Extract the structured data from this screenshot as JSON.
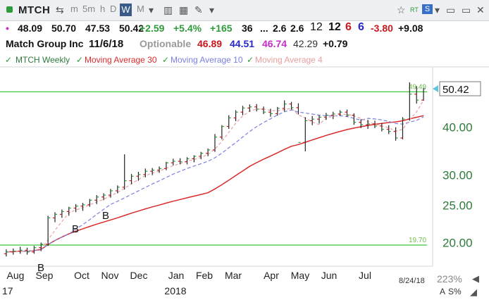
{
  "toolbar": {
    "symbol": "MTCH",
    "intervals": [
      "m",
      "5m",
      "h",
      "D",
      "W",
      "M"
    ],
    "active_interval": "W",
    "right_labels": [
      "RT",
      "S"
    ]
  },
  "quote": {
    "last": "48.09",
    "high": "50.70",
    "low": "47.53",
    "close": "50.42",
    "change": "+2.59",
    "change_pct": "+5.4%",
    "v1": "+165",
    "v2": "36",
    "v3": "2.6",
    "v4": "2.6",
    "v5": "12",
    "v6": "12",
    "v7": "6",
    "v8": "6",
    "v9": "-3.80",
    "v10": "+9.08"
  },
  "info": {
    "company": "Match Group Inc",
    "date": "11/6/18",
    "optionable": "Optionable",
    "n1": "46.89",
    "n2": "44.51",
    "n3": "46.74",
    "n4": "42.29",
    "n5": "+0.79"
  },
  "legend": {
    "symbol_label": "MTCH Weekly",
    "ma30": "Moving Average 30",
    "ma10": "Moving Average 10",
    "ma4": "Moving Average 4"
  },
  "colors": {
    "up": "#2e9b3b",
    "down": "#c8181e",
    "ma30": "#d92b2b",
    "ma10": "#7b7fe0",
    "ma4": "#e8a0a0",
    "hline": "#3ec83e",
    "candle": "#222222",
    "purple": "#c42fc8",
    "blue": "#2828c8"
  },
  "chart_data": {
    "type": "bar",
    "scale": "log",
    "ylim": [
      17.5,
      57
    ],
    "y_ticks": [
      {
        "value": 20,
        "label": "20.00"
      },
      {
        "value": 25,
        "label": "25.00"
      },
      {
        "value": 30,
        "label": "30.00"
      },
      {
        "value": 40,
        "label": "40.00"
      },
      {
        "value": 50.42,
        "label": "50.42"
      }
    ],
    "x_months": [
      "Aug",
      "Sep",
      "Oct",
      "Nov",
      "Dec",
      "Jan",
      "Feb",
      "Mar",
      "Apr",
      "May",
      "Jun",
      "Jul"
    ],
    "x_years": [
      "17",
      "2018"
    ],
    "last_date": "8/24/18",
    "zoom": "223%",
    "scale_labels": [
      "A",
      "S%"
    ],
    "hlines": [
      {
        "value": 19.7,
        "label": "19.70"
      },
      {
        "value": 49.49,
        "label": "49.49"
      }
    ],
    "annotations": [
      "B",
      "B",
      "B"
    ],
    "weeks": [
      [
        18.7,
        19.2,
        18.4,
        18.9
      ],
      [
        18.9,
        19.3,
        18.6,
        19.0
      ],
      [
        19.0,
        19.5,
        18.7,
        19.1
      ],
      [
        19.1,
        19.4,
        18.6,
        18.9
      ],
      [
        18.9,
        19.6,
        18.7,
        19.4
      ],
      [
        19.4,
        20.0,
        19.0,
        19.8
      ],
      [
        19.8,
        23.5,
        19.6,
        23.2
      ],
      [
        23.2,
        24.0,
        22.6,
        23.7
      ],
      [
        23.7,
        24.4,
        23.2,
        24.1
      ],
      [
        24.1,
        24.8,
        23.5,
        24.6
      ],
      [
        24.6,
        25.2,
        24.0,
        24.9
      ],
      [
        24.9,
        25.4,
        24.2,
        25.1
      ],
      [
        25.1,
        26.0,
        24.8,
        25.8
      ],
      [
        25.8,
        26.6,
        25.2,
        26.3
      ],
      [
        26.3,
        26.9,
        25.8,
        26.6
      ],
      [
        26.6,
        27.6,
        26.2,
        27.3
      ],
      [
        27.3,
        28.2,
        26.9,
        27.9
      ],
      [
        27.9,
        34.0,
        27.5,
        29.0
      ],
      [
        29.0,
        30.2,
        28.4,
        29.8
      ],
      [
        29.8,
        30.6,
        29.0,
        30.1
      ],
      [
        30.1,
        31.2,
        29.6,
        30.7
      ],
      [
        30.7,
        31.3,
        30.0,
        30.9
      ],
      [
        30.9,
        31.6,
        30.4,
        31.2
      ],
      [
        31.2,
        32.5,
        30.9,
        32.3
      ],
      [
        32.3,
        33.1,
        31.8,
        32.6
      ],
      [
        32.6,
        33.2,
        32.0,
        32.5
      ],
      [
        32.5,
        33.4,
        32.0,
        33.1
      ],
      [
        33.1,
        33.8,
        32.4,
        33.6
      ],
      [
        33.6,
        34.5,
        33.0,
        34.2
      ],
      [
        34.2,
        35.2,
        33.6,
        34.9
      ],
      [
        34.9,
        38.4,
        34.5,
        37.7
      ],
      [
        37.7,
        40.5,
        37.2,
        40.2
      ],
      [
        40.2,
        43.0,
        39.6,
        42.3
      ],
      [
        42.3,
        44.3,
        41.5,
        43.8
      ],
      [
        43.8,
        45.5,
        43.0,
        44.9
      ],
      [
        44.9,
        45.9,
        43.9,
        45.2
      ],
      [
        45.2,
        46.0,
        44.0,
        44.6
      ],
      [
        44.6,
        45.3,
        43.3,
        43.8
      ],
      [
        43.8,
        44.7,
        42.6,
        43.4
      ],
      [
        43.4,
        45.2,
        42.9,
        44.8
      ],
      [
        44.8,
        47.0,
        44.0,
        46.0
      ],
      [
        46.0,
        46.6,
        44.5,
        45.0
      ],
      [
        45.0,
        46.2,
        43.2,
        36.5
      ],
      [
        36.5,
        42.5,
        34.6,
        41.6
      ],
      [
        41.6,
        42.8,
        40.5,
        42.0
      ],
      [
        42.0,
        43.0,
        40.9,
        42.5
      ],
      [
        42.5,
        43.6,
        41.8,
        43.0
      ],
      [
        43.0,
        43.9,
        42.0,
        43.3
      ],
      [
        43.3,
        44.3,
        42.8,
        43.8
      ],
      [
        43.8,
        44.5,
        42.6,
        43.0
      ],
      [
        43.0,
        43.5,
        40.6,
        41.2
      ],
      [
        41.2,
        42.0,
        39.8,
        40.6
      ],
      [
        40.6,
        41.8,
        39.6,
        40.8
      ],
      [
        40.8,
        41.6,
        39.8,
        40.3
      ],
      [
        40.3,
        41.0,
        39.0,
        39.5
      ],
      [
        39.5,
        40.5,
        38.4,
        39.0
      ],
      [
        39.0,
        40.0,
        36.9,
        37.5
      ],
      [
        37.5,
        42.5,
        37.2,
        42.0
      ],
      [
        42.0,
        52.4,
        41.6,
        48.8
      ],
      [
        48.8,
        51.2,
        46.1,
        47.1
      ],
      [
        47.1,
        50.7,
        46.9,
        50.4
      ]
    ]
  }
}
